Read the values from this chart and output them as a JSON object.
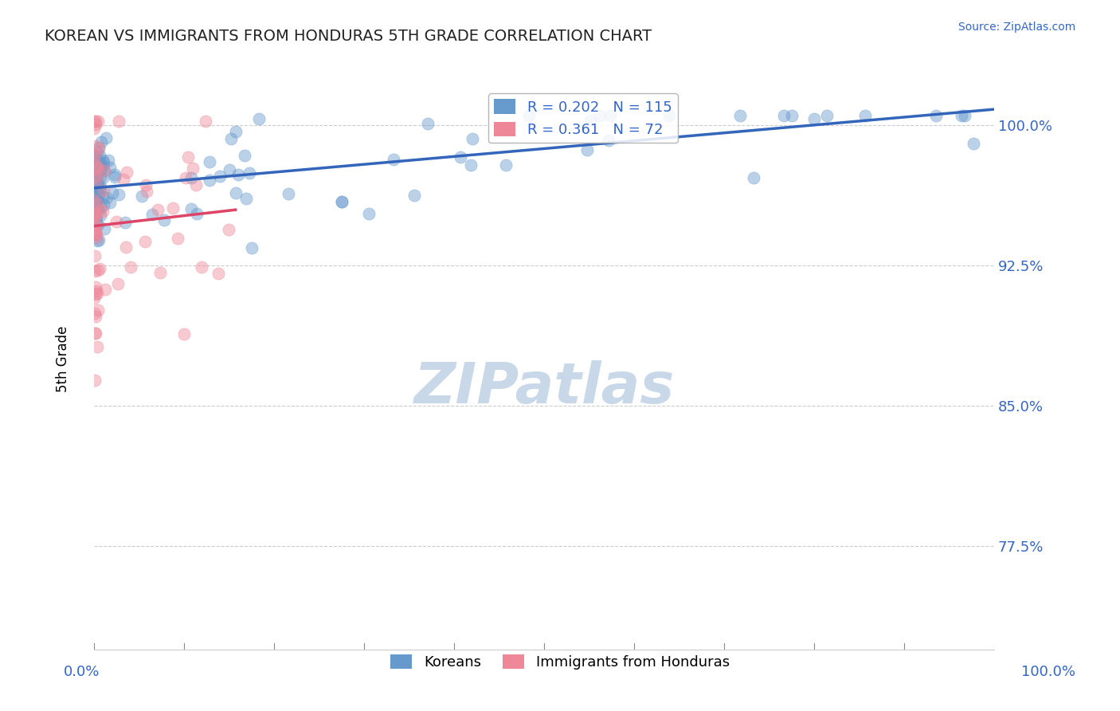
{
  "title": "KOREAN VS IMMIGRANTS FROM HONDURAS 5TH GRADE CORRELATION CHART",
  "source_text": "Source: ZipAtlas.com",
  "ylabel": "5th Grade",
  "ytick_labels": [
    "77.5%",
    "85.0%",
    "92.5%",
    "100.0%"
  ],
  "ytick_values": [
    0.775,
    0.85,
    0.925,
    1.0
  ],
  "xmin": 0.0,
  "xmax": 1.0,
  "ymin": 0.72,
  "ymax": 1.03,
  "legend_blue_label": "R = 0.202   N = 115",
  "legend_pink_label": "R = 0.361   N = 72",
  "blue_N": 115,
  "pink_N": 72,
  "watermark_text": "ZIPatlas",
  "watermark_color": "#c8d8e8",
  "blue_color": "#6699cc",
  "pink_color": "#ee8899",
  "blue_line_color": "#3366bb",
  "pink_line_color": "#dd4466",
  "dot_size": 120,
  "dot_alpha": 0.45,
  "grid_color": "#cccccc",
  "title_color": "#222222",
  "axis_label_color": "#3366cc"
}
